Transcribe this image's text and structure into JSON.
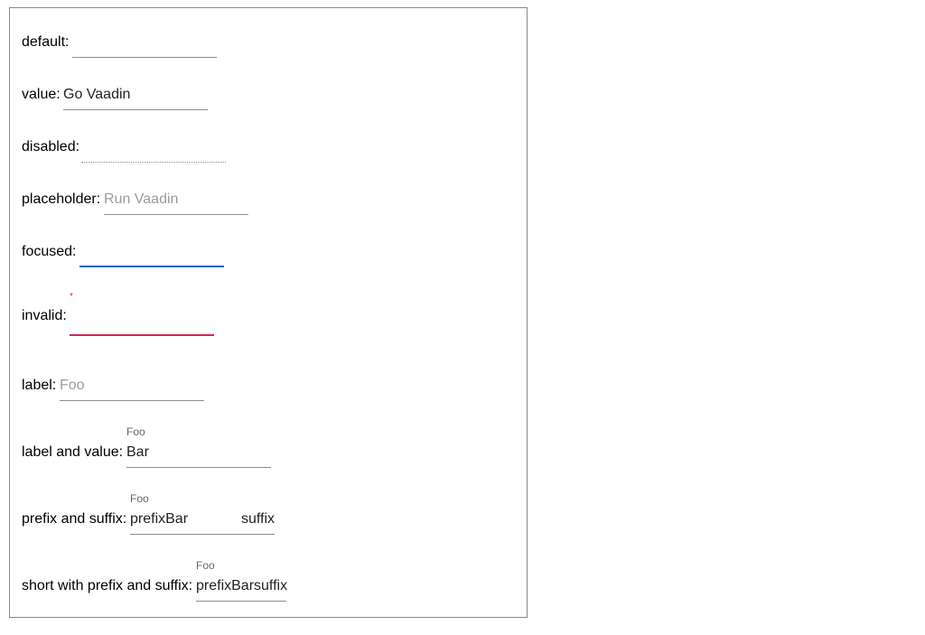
{
  "rows": {
    "default": {
      "label": "default:",
      "value": ""
    },
    "value": {
      "label": "value:",
      "value": "Go Vaadin"
    },
    "disabled": {
      "label": "disabled:",
      "value": ""
    },
    "placeholder": {
      "label": "placeholder:",
      "placeholder": "Run Vaadin"
    },
    "focused": {
      "label": "focused:",
      "value": ""
    },
    "invalid": {
      "label": "invalid:",
      "required_mark": "*",
      "value": ""
    },
    "label": {
      "label": "label:",
      "field_label": "Foo"
    },
    "label_and_value": {
      "label": "label and value:",
      "field_label": "Foo",
      "value": "Bar"
    },
    "prefix_and_suffix": {
      "label": "prefix and suffix:",
      "field_label": "Foo",
      "prefix": "prefix",
      "value": "Bar",
      "suffix": "suffix"
    },
    "short_prefix_suffix": {
      "label": "short with prefix and suffix:",
      "field_label": "Foo",
      "prefix": "prefix",
      "value": "Bar",
      "suffix": "suffix"
    }
  },
  "colors": {
    "focus": "#2d62d6",
    "invalid": "#d3264f",
    "underline": "#8e8e8e",
    "placeholder": "#9b9b9b"
  }
}
